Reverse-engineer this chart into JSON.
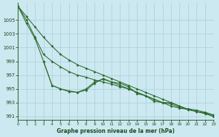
{
  "title": "Graphe pression niveau de la mer (hPa)",
  "background_color": "#cce8f0",
  "grid_color": "#a8cdd8",
  "line_color": "#2d6a2d",
  "xlim": [
    0,
    23
  ],
  "ylim": [
    990.5,
    1007.5
  ],
  "yticks": [
    991,
    993,
    995,
    997,
    999,
    1001,
    1003,
    1005
  ],
  "xticks": [
    0,
    1,
    2,
    3,
    4,
    5,
    6,
    7,
    8,
    9,
    10,
    11,
    12,
    13,
    14,
    15,
    16,
    17,
    18,
    19,
    20,
    21,
    22,
    23
  ],
  "curve1": {
    "x": [
      0,
      1,
      2,
      3,
      4,
      5,
      6,
      7,
      8,
      9,
      10,
      11,
      12,
      13,
      14,
      15,
      16,
      17,
      18,
      19,
      20,
      21,
      22,
      23
    ],
    "y": [
      1007,
      1005.5,
      1004,
      1002.5,
      1001.2,
      1000.0,
      999.2,
      998.5,
      998.0,
      997.5,
      997.0,
      996.5,
      996.0,
      995.5,
      995.0,
      994.5,
      994.0,
      993.5,
      993.0,
      992.5,
      992.0,
      991.7,
      991.5,
      991.2
    ]
  },
  "curve2": {
    "x": [
      0,
      1,
      2,
      3,
      4,
      5,
      6,
      7,
      8,
      9,
      10,
      11,
      12,
      13,
      14,
      15,
      16,
      17,
      18,
      19,
      20,
      21,
      22,
      23
    ],
    "y": [
      1007,
      1005.0,
      1002.5,
      1000.0,
      999.0,
      998.2,
      997.5,
      997.0,
      996.7,
      996.3,
      996.0,
      995.7,
      995.3,
      995.0,
      994.5,
      994.0,
      993.5,
      993.0,
      992.5,
      992.2,
      992.0,
      991.7,
      991.4,
      991.0
    ]
  },
  "curve3": {
    "x": [
      3,
      4,
      5,
      6,
      7,
      8,
      9,
      10,
      11,
      12,
      13,
      14,
      15,
      16,
      17,
      18,
      19,
      20,
      21,
      22,
      23
    ],
    "y": [
      999.0,
      995.5,
      995.0,
      994.7,
      994.5,
      994.8,
      995.8,
      996.5,
      996.0,
      995.5,
      995.0,
      994.5,
      994.0,
      993.5,
      993.0,
      993.0,
      992.5,
      992.0,
      991.7,
      991.4,
      991.0
    ]
  },
  "curve4": {
    "x": [
      0,
      1,
      2,
      3,
      4,
      5,
      6,
      7,
      8,
      9,
      10,
      11,
      12,
      13,
      14,
      15,
      16,
      17,
      18,
      19,
      20,
      21,
      22,
      23
    ],
    "y": [
      1007,
      1004.5,
      1002.3,
      999.0,
      995.5,
      995.0,
      994.6,
      994.5,
      995.0,
      996.0,
      996.4,
      996.0,
      995.8,
      995.3,
      994.3,
      994.0,
      993.2,
      993.0,
      992.8,
      992.3,
      992.1,
      991.9,
      991.6,
      991.2
    ]
  }
}
